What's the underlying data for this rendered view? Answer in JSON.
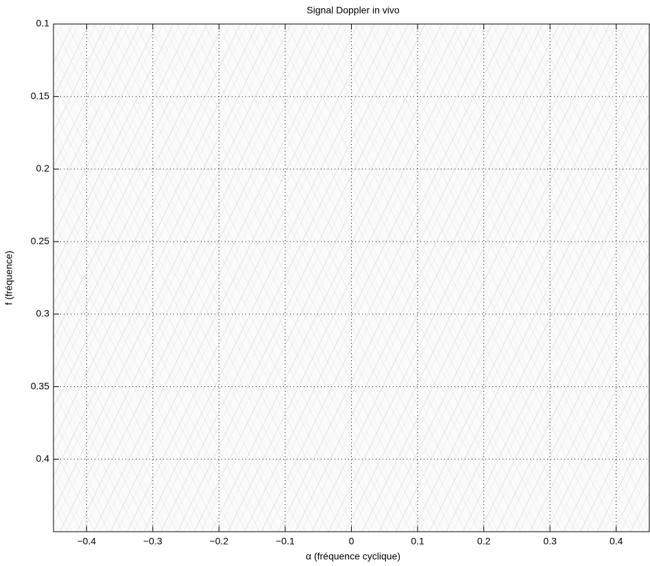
{
  "chart_data": {
    "type": "heatmap",
    "title": "Signal Doppler in vivo",
    "x_label": "α (fréquence cyclique)",
    "y_label": "f (fréquence)",
    "xlim": [
      -0.45,
      0.45
    ],
    "ylim": [
      0.1,
      0.45
    ],
    "y_inverted": true,
    "xticks": [
      {
        "value": -0.4,
        "label": "−0.4"
      },
      {
        "value": -0.3,
        "label": "−0.3"
      },
      {
        "value": -0.2,
        "label": "−0.2"
      },
      {
        "value": -0.1,
        "label": "−0.1"
      },
      0,
      0.1,
      0.2,
      0.3,
      0.4
    ],
    "yticks": [
      0.1,
      0.15,
      0.2,
      0.25,
      0.3,
      0.35,
      0.4
    ],
    "grid": true,
    "colormap": "gray"
  }
}
